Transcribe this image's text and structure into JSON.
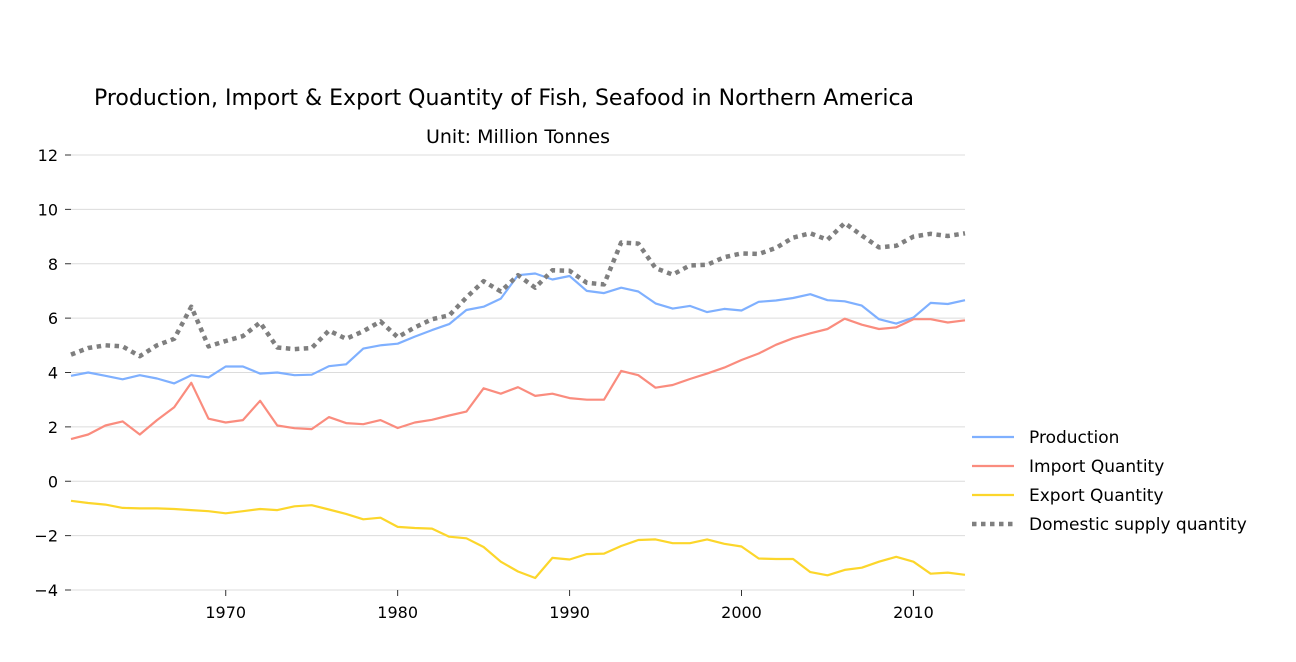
{
  "chart_data": {
    "type": "line",
    "title": "Production, Import & Export Quantity of Fish, Seafood in Northern America",
    "subtitle": "Unit: Million Tonnes",
    "xlabel": "",
    "ylabel": "",
    "xlim": [
      1961,
      2013
    ],
    "ylim": [
      -4,
      12
    ],
    "yticks": [
      "12",
      "10",
      "8",
      "6",
      "4",
      "2",
      "0",
      "−2",
      "−4"
    ],
    "xticks": [
      "1970",
      "1980",
      "1990",
      "2000",
      "2010"
    ],
    "grid": "horizontal",
    "legend_position": "right",
    "x": [
      1961,
      1962,
      1963,
      1964,
      1965,
      1966,
      1967,
      1968,
      1969,
      1970,
      1971,
      1972,
      1973,
      1974,
      1975,
      1976,
      1977,
      1978,
      1979,
      1980,
      1981,
      1982,
      1983,
      1984,
      1985,
      1986,
      1987,
      1988,
      1989,
      1990,
      1991,
      1992,
      1993,
      1994,
      1995,
      1996,
      1997,
      1998,
      1999,
      2000,
      2001,
      2002,
      2003,
      2004,
      2005,
      2006,
      2007,
      2008,
      2009,
      2010,
      2011,
      2012,
      2013
    ],
    "series": [
      {
        "name": "Production",
        "color": "#7fb0ff",
        "style": "solid",
        "values": [
          3.88,
          4.0,
          3.88,
          3.75,
          3.9,
          3.78,
          3.6,
          3.9,
          3.82,
          4.22,
          4.22,
          3.96,
          4.0,
          3.9,
          3.92,
          4.23,
          4.3,
          4.88,
          5.0,
          5.06,
          5.32,
          5.56,
          5.78,
          6.3,
          6.42,
          6.72,
          7.58,
          7.64,
          7.42,
          7.55,
          7.0,
          6.92,
          7.12,
          6.98,
          6.54,
          6.35,
          6.45,
          6.22,
          6.34,
          6.28,
          6.6,
          6.65,
          6.74,
          6.88,
          6.66,
          6.62,
          6.46,
          5.96,
          5.8,
          6.02,
          6.56,
          6.52,
          6.66
        ]
      },
      {
        "name": "Import Quantity",
        "color": "#fa8c7e",
        "style": "solid",
        "values": [
          1.55,
          1.72,
          2.05,
          2.2,
          1.72,
          2.25,
          2.72,
          3.62,
          2.3,
          2.16,
          2.25,
          2.96,
          2.05,
          1.95,
          1.92,
          2.36,
          2.14,
          2.1,
          2.25,
          1.96,
          2.16,
          2.26,
          2.42,
          2.56,
          3.42,
          3.22,
          3.46,
          3.14,
          3.22,
          3.06,
          3.0,
          3.0,
          4.06,
          3.9,
          3.44,
          3.54,
          3.76,
          3.96,
          4.18,
          4.46,
          4.7,
          5.02,
          5.26,
          5.44,
          5.6,
          5.98,
          5.76,
          5.6,
          5.66,
          5.96,
          5.96,
          5.84,
          5.92
        ]
      },
      {
        "name": "Export Quantity",
        "color": "#fcd62b",
        "style": "solid",
        "values": [
          -0.72,
          -0.8,
          -0.86,
          -0.98,
          -1.0,
          -1.0,
          -1.02,
          -1.06,
          -1.1,
          -1.18,
          -1.1,
          -1.02,
          -1.06,
          -0.92,
          -0.88,
          -1.04,
          -1.2,
          -1.4,
          -1.34,
          -1.68,
          -1.72,
          -1.74,
          -2.04,
          -2.1,
          -2.42,
          -2.96,
          -3.32,
          -3.56,
          -2.82,
          -2.88,
          -2.68,
          -2.66,
          -2.38,
          -2.16,
          -2.14,
          -2.28,
          -2.28,
          -2.14,
          -2.3,
          -2.4,
          -2.84,
          -2.86,
          -2.86,
          -3.34,
          -3.46,
          -3.26,
          -3.18,
          -2.96,
          -2.78,
          -2.96,
          -3.4,
          -3.36,
          -3.44
        ]
      },
      {
        "name": "Domestic supply quantity",
        "color": "#7f7f7f",
        "style": "dotted",
        "values": [
          4.66,
          4.9,
          5.0,
          4.96,
          4.6,
          5.0,
          5.24,
          6.42,
          4.96,
          5.16,
          5.34,
          5.84,
          4.92,
          4.86,
          4.9,
          5.54,
          5.24,
          5.52,
          5.88,
          5.3,
          5.66,
          5.96,
          6.1,
          6.76,
          7.36,
          6.98,
          7.58,
          7.12,
          7.76,
          7.74,
          7.3,
          7.24,
          8.78,
          8.74,
          7.84,
          7.6,
          7.94,
          7.96,
          8.24,
          8.38,
          8.36,
          8.58,
          8.96,
          9.12,
          8.88,
          9.5,
          9.04,
          8.6,
          8.66,
          9.0,
          9.1,
          9.02,
          9.12
        ]
      }
    ]
  }
}
